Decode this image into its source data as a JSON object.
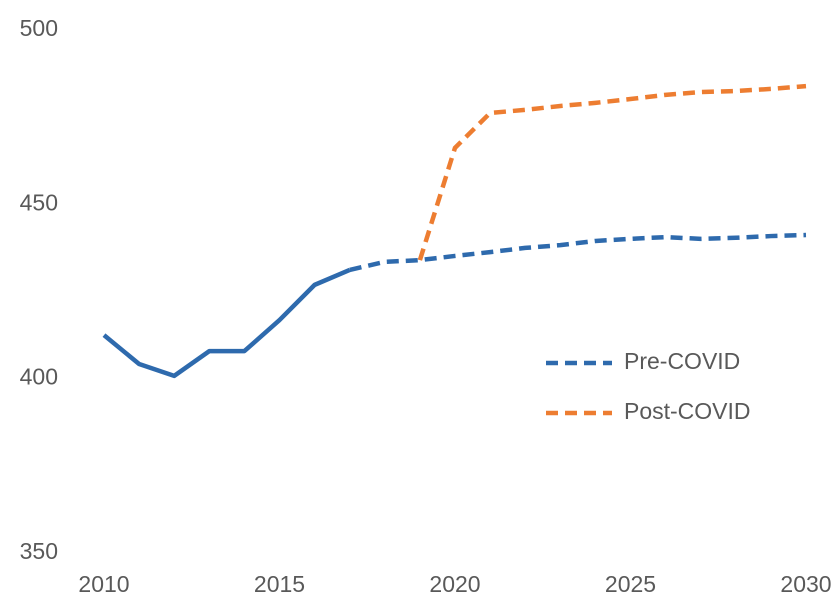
{
  "chart_data": {
    "type": "line",
    "x": [
      2010,
      2011,
      2012,
      2013,
      2014,
      2015,
      2016,
      2017,
      2018,
      2019,
      2020,
      2021,
      2022,
      2023,
      2024,
      2025,
      2026,
      2027,
      2028,
      2029,
      2030
    ],
    "series": [
      {
        "name": "Pre-COVID",
        "color": "#2e6aad",
        "dashed_from_x": 2017,
        "values": [
          412.5,
          404.2,
          400.8,
          407.9,
          407.9,
          416.8,
          426.9,
          431.2,
          433.5,
          434.0,
          435.2,
          436.3,
          437.5,
          438.3,
          439.5,
          440.1,
          440.6,
          440.1,
          440.4,
          440.9,
          441.2
        ]
      },
      {
        "name": "Post-COVID",
        "color": "#ed7d31",
        "dashed_from_x": 2019,
        "values": [
          null,
          null,
          null,
          null,
          null,
          null,
          null,
          null,
          null,
          434.0,
          466.2,
          476.2,
          477.1,
          478.2,
          479.1,
          480.2,
          481.4,
          482.2,
          482.5,
          483.1,
          483.9
        ]
      }
    ],
    "xlim": [
      2010,
      2030
    ],
    "xticks": [
      2010,
      2015,
      2020,
      2025,
      2030
    ],
    "ylim": [
      350,
      500
    ],
    "yticks": [
      350,
      400,
      450,
      500
    ],
    "grid": false,
    "legend": "right"
  }
}
